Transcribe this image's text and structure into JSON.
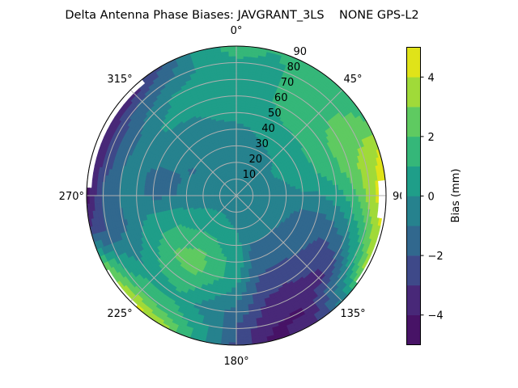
{
  "chart_data": {
    "type": "heatmap",
    "subtype": "polar-filled-contour",
    "title": "Delta Antenna Phase Biases: JAVGRANT_3LS    NONE GPS-L2",
    "angular_axis": {
      "quantity": "azimuth (degrees, clockwise from top)",
      "tick_labels": [
        "0°",
        "45°",
        "90°",
        "135°",
        "180°",
        "225°",
        "270°",
        "315°"
      ],
      "tick_values": [
        0,
        45,
        90,
        135,
        180,
        225,
        270,
        315
      ]
    },
    "radial_axis": {
      "quantity": "zenith angle (degrees)",
      "range": [
        0,
        90
      ],
      "tick_values": [
        10,
        20,
        30,
        40,
        50,
        60,
        70,
        80,
        90
      ],
      "tick_labels": [
        "10",
        "20",
        "30",
        "40",
        "50",
        "60",
        "70",
        "80",
        "90"
      ],
      "label_azimuth": 22.5
    },
    "grid": true,
    "colorbar": {
      "label": "Bias (mm)",
      "levels": [
        -5,
        -4,
        -3,
        -2,
        -1,
        0,
        1,
        2,
        3,
        4,
        5
      ],
      "tick_values": [
        -4,
        -2,
        0,
        2,
        4
      ],
      "tick_labels": [
        "−4",
        "−2",
        "0",
        "2",
        "4"
      ],
      "colormap": "viridis",
      "band_colors": [
        "#471366",
        "#482878",
        "#3e4989",
        "#31688e",
        "#26828e",
        "#1f9e89",
        "#35b779",
        "#5fca61",
        "#a0da39",
        "#e0e319"
      ],
      "placement": "right"
    },
    "grid_azimuths": [
      0,
      15,
      30,
      45,
      60,
      75,
      90,
      105,
      120,
      135,
      150,
      165,
      180,
      195,
      210,
      225,
      240,
      255,
      270,
      285,
      300,
      315,
      330,
      345
    ],
    "grid_zeniths": [
      0,
      10,
      20,
      30,
      40,
      50,
      60,
      70,
      80,
      90
    ],
    "values_mm": [
      [
        -0.5,
        -0.5,
        -0.5,
        -0.4,
        -0.2,
        0.3,
        0.5,
        0.5,
        0.8,
        1.5
      ],
      [
        -0.5,
        -0.5,
        -0.5,
        -0.3,
        0.0,
        0.4,
        0.7,
        0.8,
        0.8,
        1.0
      ],
      [
        -0.5,
        -0.5,
        -0.4,
        -0.2,
        0.3,
        0.9,
        1.3,
        1.4,
        1.3,
        1.2
      ],
      [
        -0.5,
        -0.4,
        -0.3,
        0.0,
        0.5,
        1.0,
        1.5,
        1.6,
        1.5,
        1.5
      ],
      [
        -0.5,
        -0.4,
        -0.2,
        0.2,
        0.6,
        1.1,
        1.8,
        2.4,
        2.5,
        2.0
      ],
      [
        -0.5,
        -0.5,
        -0.3,
        0.0,
        0.5,
        1.0,
        1.6,
        2.6,
        3.4,
        4.3
      ],
      [
        -0.5,
        -0.5,
        -0.5,
        -0.4,
        -0.2,
        -0.1,
        0.5,
        1.5,
        3.5,
        4.8
      ],
      [
        -0.5,
        -0.6,
        -0.7,
        -0.8,
        -1.1,
        -1.3,
        -1.0,
        0.0,
        2.0,
        4.5
      ],
      [
        -0.5,
        -0.6,
        -0.8,
        -0.9,
        -1.3,
        -1.8,
        -2.3,
        -1.8,
        0.5,
        4.0
      ],
      [
        -0.5,
        -0.6,
        -0.8,
        -1.0,
        -1.5,
        -2.0,
        -2.5,
        -3.5,
        -1.5,
        -0.5
      ],
      [
        -0.5,
        -0.6,
        -0.8,
        -1.0,
        -1.5,
        -2.2,
        -3.0,
        -3.5,
        -4.2,
        -3.5
      ],
      [
        -0.5,
        -0.6,
        -0.7,
        -1.0,
        -1.4,
        -2.0,
        -2.7,
        -3.3,
        -3.9,
        -4.3
      ],
      [
        -0.5,
        -0.4,
        -0.1,
        0.5,
        0.8,
        0.5,
        -0.5,
        -1.3,
        -2.0,
        -2.3
      ],
      [
        -0.5,
        -0.3,
        0.2,
        0.8,
        1.2,
        1.3,
        0.5,
        -0.5,
        0.3,
        0.5
      ],
      [
        -0.5,
        -0.2,
        0.3,
        1.2,
        2.2,
        2.5,
        1.5,
        0.8,
        1.5,
        3.5
      ],
      [
        -0.5,
        -0.2,
        0.3,
        1.0,
        1.8,
        2.2,
        1.3,
        0.6,
        1.8,
        4.5
      ],
      [
        -0.5,
        -0.3,
        0.2,
        0.6,
        1.2,
        1.2,
        0.5,
        -0.3,
        0.8,
        3.0
      ],
      [
        -0.5,
        -0.4,
        -0.2,
        0.0,
        0.3,
        0.4,
        -0.2,
        -1.2,
        -2.0,
        -2.5
      ],
      [
        -0.5,
        -0.5,
        -0.6,
        -0.8,
        -1.1,
        -1.2,
        -0.8,
        -0.9,
        -1.6,
        -4.5
      ],
      [
        -0.5,
        -0.5,
        -0.6,
        -0.8,
        -1.2,
        -1.2,
        -0.8,
        -1.0,
        -2.5,
        -4.5
      ],
      [
        -0.5,
        -0.5,
        -0.6,
        -1.1,
        -0.8,
        -0.5,
        -0.5,
        -1.2,
        -2.5,
        -4.5
      ],
      [
        -0.5,
        -0.5,
        -0.5,
        -0.6,
        -0.5,
        -0.3,
        0.2,
        -0.6,
        -1.8,
        -4.0
      ],
      [
        -0.5,
        -0.5,
        -0.5,
        -0.5,
        -0.4,
        -0.2,
        0.3,
        0.3,
        -1.0,
        -2.0
      ],
      [
        -0.5,
        -0.5,
        -0.5,
        -0.5,
        -0.3,
        0.1,
        0.4,
        0.5,
        0.3,
        0.5
      ]
    ],
    "no_data_regions": [
      {
        "azimuth": [
          272,
          322
        ],
        "zenith_above": 87
      },
      {
        "azimuth": [
          84,
          100
        ],
        "zenith_above": 85
      },
      {
        "azimuth": [
          100,
          126
        ],
        "zenith_above": 88
      },
      {
        "azimuth": [
          222,
          240
        ],
        "zenith_above": 88
      }
    ]
  }
}
